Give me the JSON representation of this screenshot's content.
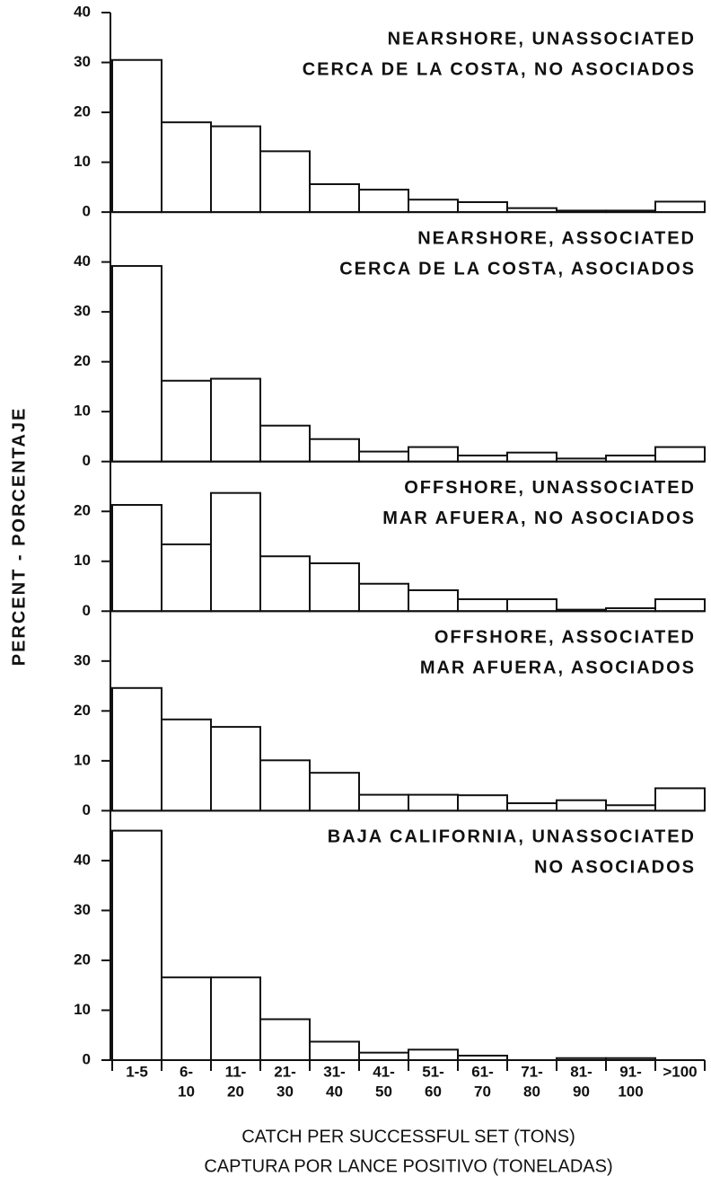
{
  "y_label": "PERCENT - PORCENTAJE",
  "chart_data": [
    {
      "type": "bar",
      "title": [
        "NEARSHORE, UNASSOCIATED",
        "CERCA DE LA COSTA, NO ASOCIADOS"
      ],
      "values": [
        30.5,
        18,
        17.2,
        12.2,
        5.6,
        4.5,
        2.5,
        2,
        0.8,
        0.3,
        0.3,
        2.1
      ],
      "color": "#ffffff",
      "ylim": [
        0,
        40
      ],
      "yticks": [
        0,
        10,
        20,
        30,
        40
      ]
    },
    {
      "type": "bar",
      "title": [
        "NEARSHORE, ASSOCIATED",
        "CERCA DE LA COSTA, ASOCIADOS"
      ],
      "values": [
        39.2,
        16.2,
        16.6,
        7.2,
        4.5,
        2,
        2.9,
        1.2,
        1.8,
        0.6,
        1.2,
        2.9
      ],
      "color": "#ffffff",
      "ylim": [
        0,
        50
      ],
      "yticks": [
        0,
        10,
        20,
        30,
        40
      ]
    },
    {
      "type": "bar",
      "title": [
        "OFFSHORE, UNASSOCIATED",
        "MAR AFUERA, NO ASOCIADOS"
      ],
      "values": [
        21.3,
        13.4,
        23.7,
        11,
        9.6,
        5.5,
        4.2,
        2.4,
        2.4,
        0.3,
        0.6,
        2.4
      ],
      "color": "#ffffff",
      "ylim": [
        0,
        30
      ],
      "yticks": [
        0,
        10,
        20
      ]
    },
    {
      "type": "bar",
      "title": [
        "OFFSHORE, ASSOCIATED",
        "MAR AFUERA, ASOCIADOS"
      ],
      "values": [
        24.6,
        18.3,
        16.8,
        10.1,
        7.6,
        3.2,
        3.2,
        3.1,
        1.5,
        2.1,
        1.1,
        4.5
      ],
      "color": "#ffffff",
      "ylim": [
        0,
        40
      ],
      "yticks": [
        0,
        10,
        20,
        30
      ]
    },
    {
      "type": "bar",
      "title": [
        "BAJA CALIFORNIA, UNASSOCIATED",
        "NO ASOCIADOS"
      ],
      "values": [
        46,
        16.6,
        16.6,
        8.2,
        3.7,
        1.5,
        2.1,
        0.9,
        0,
        0.4,
        0.4,
        0
      ],
      "color": "#ffffff",
      "ylim": [
        0,
        50
      ],
      "yticks": [
        0,
        10,
        20,
        30,
        40
      ],
      "categories": [
        [
          "1-5"
        ],
        [
          "6-",
          "10"
        ],
        [
          "11-",
          "20"
        ],
        [
          "21-",
          "30"
        ],
        [
          "31-",
          "40"
        ],
        [
          "41-",
          "50"
        ],
        [
          "51-",
          "60"
        ],
        [
          "61-",
          "70"
        ],
        [
          "71-",
          "80"
        ],
        [
          "81-",
          "90"
        ],
        [
          "91-",
          "100"
        ],
        [
          ">100"
        ]
      ],
      "x_label": [
        "CATCH PER SUCCESSFUL SET (TONS)",
        "CAPTURA POR LANCE  POSITIVO (TONELADAS)"
      ]
    }
  ]
}
